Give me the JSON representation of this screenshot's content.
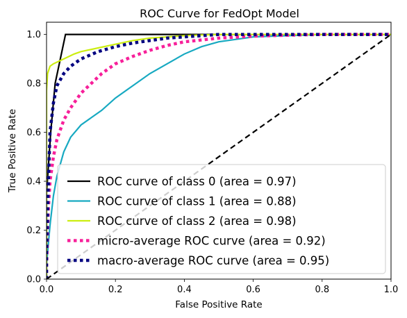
{
  "chart_data": {
    "type": "line",
    "title": "ROC Curve for FedOpt Model",
    "xlabel": "False Positive Rate",
    "ylabel": "True Positive Rate",
    "xlim": [
      0.0,
      1.0
    ],
    "ylim": [
      0.0,
      1.05
    ],
    "xticks": [
      "0.0",
      "0.2",
      "0.4",
      "0.6",
      "0.8",
      "1.0"
    ],
    "xtick_values": [
      0.0,
      0.2,
      0.4,
      0.6,
      0.8,
      1.0
    ],
    "yticks": [
      "0.0",
      "0.2",
      "0.4",
      "0.6",
      "0.8",
      "1.0"
    ],
    "ytick_values": [
      0.0,
      0.2,
      0.4,
      0.6,
      0.8,
      1.0
    ],
    "grid": false,
    "legend_position": "lower-right",
    "series": [
      {
        "name": "ROC curve of class 0 (area = 0.97)",
        "color": "#000000",
        "style": "solid",
        "x": [
          0.0,
          0.0,
          0.012,
          0.025,
          0.055,
          0.1,
          0.5,
          1.0
        ],
        "y": [
          0.0,
          0.35,
          0.6,
          0.8,
          1.0,
          1.0,
          1.0,
          1.0
        ]
      },
      {
        "name": "ROC curve of class 1 (area = 0.88)",
        "color": "#17a9c1",
        "style": "solid",
        "x": [
          0.0,
          0.0,
          0.01,
          0.02,
          0.03,
          0.05,
          0.07,
          0.1,
          0.13,
          0.16,
          0.2,
          0.25,
          0.3,
          0.35,
          0.4,
          0.45,
          0.5,
          0.55,
          0.6,
          0.7,
          0.8,
          0.9,
          1.0
        ],
        "y": [
          0.0,
          0.06,
          0.22,
          0.34,
          0.42,
          0.52,
          0.58,
          0.63,
          0.66,
          0.69,
          0.74,
          0.79,
          0.84,
          0.88,
          0.92,
          0.95,
          0.97,
          0.98,
          0.99,
          0.995,
          1.0,
          1.0,
          1.0
        ]
      },
      {
        "name": "ROC curve of class 2 (area = 0.98)",
        "color": "#ccee11",
        "style": "solid",
        "x": [
          0.0,
          0.0,
          0.003,
          0.01,
          0.02,
          0.05,
          0.08,
          0.1,
          0.15,
          0.2,
          0.25,
          0.3,
          0.35,
          0.4,
          0.45,
          0.5,
          0.6,
          0.8,
          1.0
        ],
        "y": [
          0.0,
          0.77,
          0.84,
          0.87,
          0.88,
          0.9,
          0.92,
          0.93,
          0.945,
          0.96,
          0.975,
          0.985,
          0.99,
          0.995,
          0.998,
          1.0,
          1.0,
          1.0,
          1.0
        ]
      },
      {
        "name": "micro-average ROC curve (area = 0.92)",
        "color": "#f7209a",
        "style": "dotted",
        "x": [
          0.0,
          0.0,
          0.005,
          0.01,
          0.02,
          0.03,
          0.05,
          0.07,
          0.1,
          0.13,
          0.16,
          0.2,
          0.25,
          0.3,
          0.35,
          0.4,
          0.5,
          0.6,
          0.7,
          0.8,
          0.9,
          1.0
        ],
        "y": [
          0.0,
          0.05,
          0.28,
          0.4,
          0.5,
          0.57,
          0.65,
          0.7,
          0.76,
          0.8,
          0.84,
          0.88,
          0.91,
          0.935,
          0.955,
          0.97,
          0.985,
          0.993,
          0.997,
          1.0,
          1.0,
          1.0
        ]
      },
      {
        "name": "macro-average ROC curve (area = 0.95)",
        "color": "#000080",
        "style": "dotted",
        "x": [
          0.0,
          0.0,
          0.005,
          0.01,
          0.02,
          0.03,
          0.05,
          0.07,
          0.1,
          0.15,
          0.2,
          0.25,
          0.3,
          0.35,
          0.4,
          0.45,
          0.5,
          0.6,
          0.8,
          1.0
        ],
        "y": [
          0.0,
          0.1,
          0.38,
          0.6,
          0.72,
          0.79,
          0.84,
          0.87,
          0.9,
          0.93,
          0.95,
          0.965,
          0.975,
          0.985,
          0.99,
          0.995,
          1.0,
          1.0,
          1.0,
          1.0
        ]
      },
      {
        "name": "",
        "color": "#000000",
        "style": "dashed",
        "x": [
          0.0,
          1.0
        ],
        "y": [
          0.0,
          1.0
        ]
      }
    ]
  }
}
